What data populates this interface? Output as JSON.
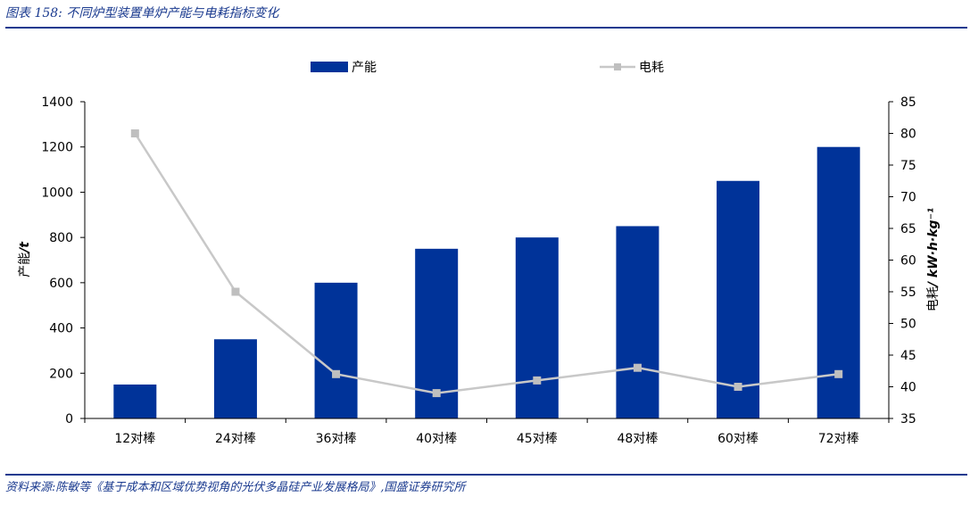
{
  "header": {
    "title": "图表 158:  不同炉型装置单炉产能与电耗指标变化"
  },
  "footer": {
    "source": "资料来源:陈敏等《基于成本和区域优势视角的光伏多晶硅产业发展格局》,国盛证券研究所"
  },
  "colors": {
    "bar": "#003399",
    "line": "#c8c8c8",
    "marker": "#bfbfbf",
    "axis": "#000000",
    "brand": "#1a3a8f"
  },
  "chart_data": {
    "type": "bar",
    "categories": [
      "12对棒",
      "24对棒",
      "36对棒",
      "40对棒",
      "45对棒",
      "48对棒",
      "60对棒",
      "72对棒"
    ],
    "series": [
      {
        "name": "产能",
        "type": "bar",
        "axis": "left",
        "values": [
          150,
          350,
          600,
          750,
          800,
          850,
          1050,
          1200
        ]
      },
      {
        "name": "电耗",
        "type": "line",
        "axis": "right",
        "values": [
          80,
          55,
          42,
          39,
          41,
          43,
          40,
          42
        ]
      }
    ],
    "y_left": {
      "label_prefix": "产能",
      "label_unit": "/t",
      "range": [
        0,
        1400
      ],
      "ticks": [
        "0",
        "200",
        "400",
        "600",
        "800",
        "1000",
        "1200",
        "1400"
      ]
    },
    "y_right": {
      "label_prefix": "电耗",
      "label_unit": "/ kW·h·kg⁻¹",
      "range": [
        35,
        85
      ],
      "ticks": [
        "35",
        "40",
        "45",
        "50",
        "55",
        "60",
        "65",
        "70",
        "75",
        "80",
        "85"
      ]
    },
    "legend_position": "top-center",
    "grid": false
  }
}
